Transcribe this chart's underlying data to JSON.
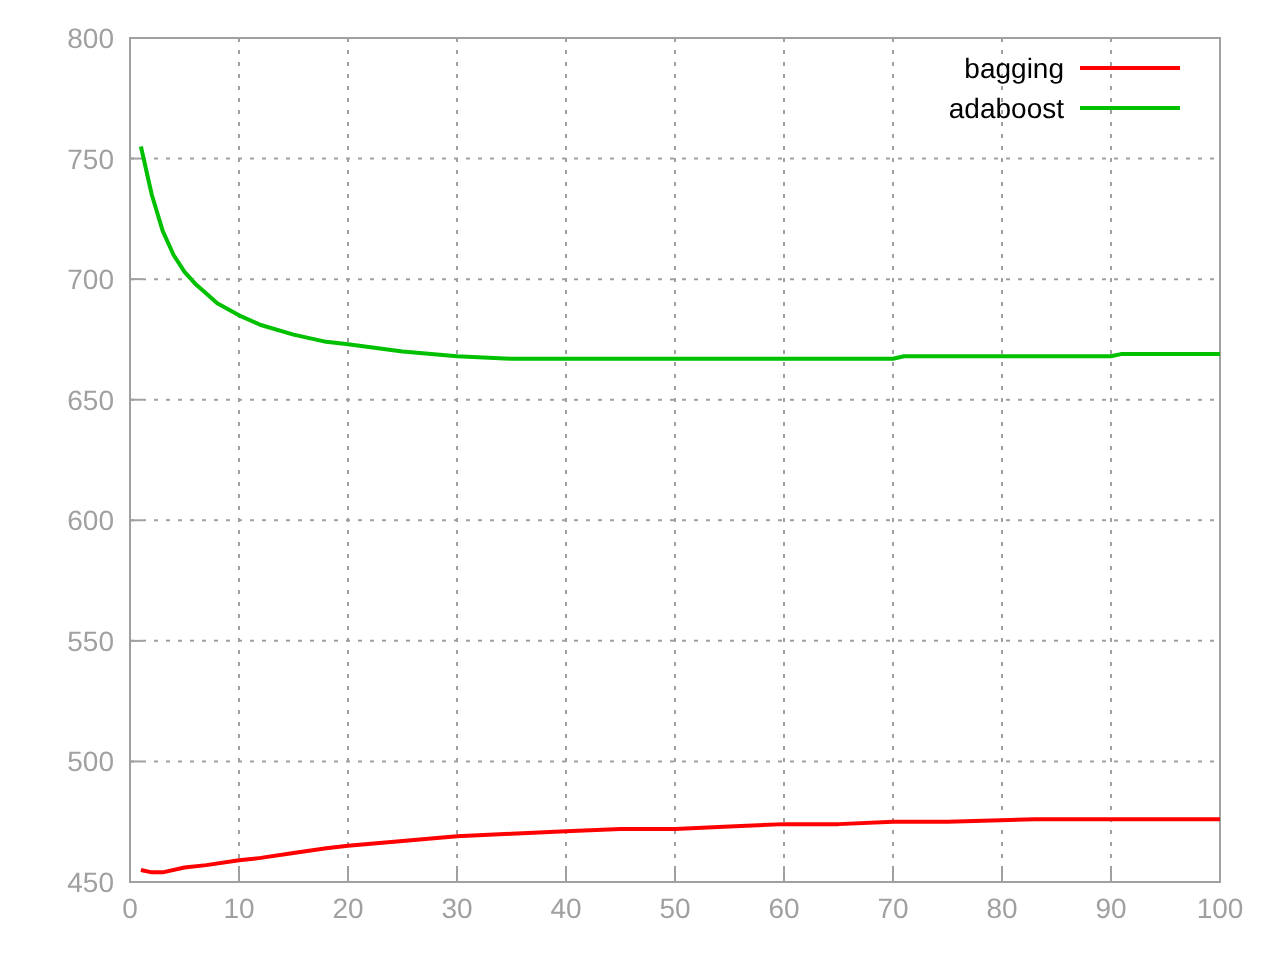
{
  "chart_data": {
    "type": "line",
    "xlim": [
      0,
      100
    ],
    "ylim": [
      450,
      800
    ],
    "xticks": [
      0,
      10,
      20,
      30,
      40,
      50,
      60,
      70,
      80,
      90,
      100
    ],
    "yticks": [
      450,
      500,
      550,
      600,
      650,
      700,
      750,
      800
    ],
    "grid": true,
    "legend": "top right",
    "line_style": "solid",
    "marker": "none",
    "series": [
      {
        "name": "bagging",
        "color": "#ff0000",
        "x": [
          1,
          2,
          3,
          5,
          7,
          10,
          12,
          15,
          18,
          20,
          25,
          30,
          35,
          40,
          45,
          50,
          55,
          60,
          65,
          70,
          75,
          83,
          90,
          100
        ],
        "values": [
          455,
          454,
          454,
          456,
          457,
          459,
          460,
          462,
          464,
          465,
          467,
          469,
          470,
          471,
          472,
          472,
          473,
          474,
          474,
          475,
          475,
          476,
          476,
          476
        ]
      },
      {
        "name": "adaboost",
        "color": "#00c000",
        "x": [
          1,
          2,
          3,
          4,
          5,
          6,
          7,
          8,
          10,
          12,
          15,
          18,
          20,
          25,
          30,
          35,
          40,
          50,
          60,
          70,
          71,
          80,
          90,
          91,
          100
        ],
        "values": [
          755,
          735,
          720,
          710,
          703,
          698,
          694,
          690,
          685,
          681,
          677,
          674,
          673,
          670,
          668,
          667,
          667,
          667,
          667,
          667,
          668,
          668,
          668,
          669,
          669
        ]
      }
    ]
  }
}
